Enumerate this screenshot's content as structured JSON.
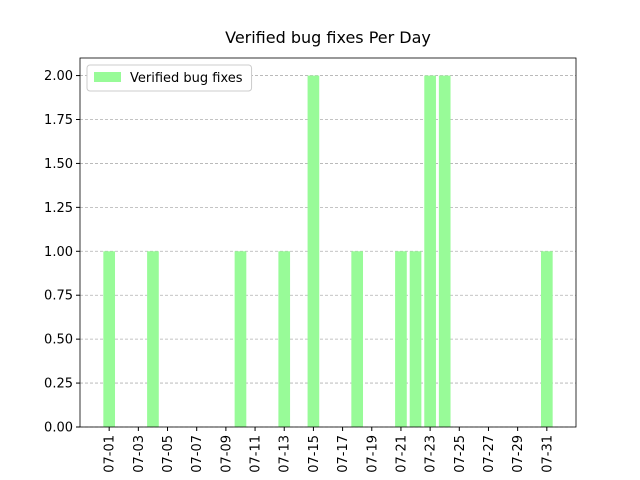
{
  "chart_data": {
    "type": "bar",
    "title": "Verified bug fixes Per Day",
    "x": [
      "07-01",
      "07-04",
      "07-10",
      "07-13",
      "07-15",
      "07-18",
      "07-21",
      "07-22",
      "07-23",
      "07-24",
      "07-31"
    ],
    "series": [
      {
        "name": "Verified bug fixes",
        "color": "#98fb98",
        "values": [
          1,
          1,
          1,
          1,
          2,
          1,
          1,
          1,
          2,
          2,
          1
        ]
      }
    ],
    "xlim": [
      "06-29",
      "08-02"
    ],
    "xticks": [
      "07-01",
      "07-03",
      "07-05",
      "07-07",
      "07-09",
      "07-11",
      "07-13",
      "07-15",
      "07-17",
      "07-19",
      "07-21",
      "07-23",
      "07-25",
      "07-27",
      "07-29",
      "07-31"
    ],
    "ylim": [
      0,
      2.1
    ],
    "yticks": [
      {
        "value": 0,
        "label": "0.00"
      },
      {
        "value": 0.25,
        "label": "0.25"
      },
      {
        "value": 0.5,
        "label": "0.50"
      },
      {
        "value": 0.75,
        "label": "0.75"
      },
      {
        "value": 1,
        "label": "1.00"
      },
      {
        "value": 1.25,
        "label": "1.25"
      },
      {
        "value": 1.5,
        "label": "1.50"
      },
      {
        "value": 1.75,
        "label": "1.75"
      },
      {
        "value": 2,
        "label": "2.00"
      }
    ],
    "grid": true,
    "legend": "upper left"
  }
}
